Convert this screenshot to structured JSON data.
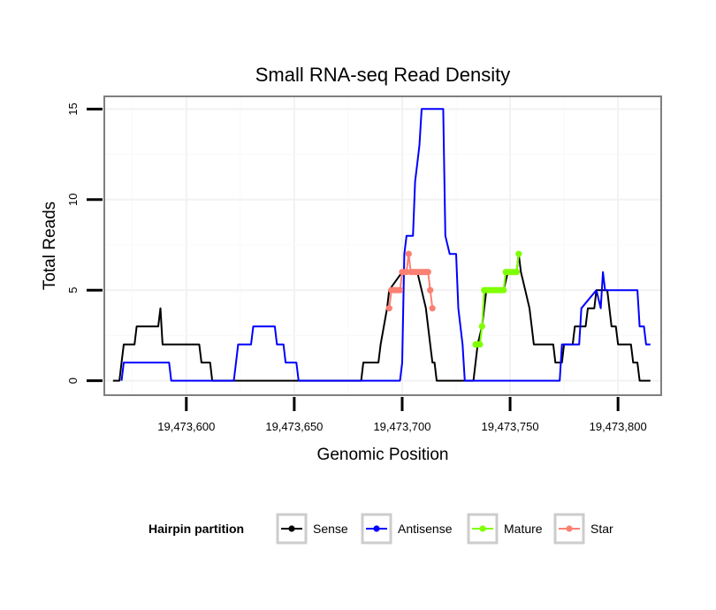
{
  "chart_data": {
    "type": "line",
    "title": "Small RNA-seq Read Density",
    "xlabel": "Genomic Position",
    "ylabel": "Total Reads",
    "xlim": [
      19473562,
      19473820
    ],
    "ylim": [
      -0.8,
      15.7
    ],
    "x_ticks": [
      19473600,
      19473650,
      19473700,
      19473750,
      19473800
    ],
    "x_tick_labels": [
      "19,473,600",
      "19,473,650",
      "19,473,700",
      "19,473,750",
      "19,473,800"
    ],
    "y_ticks": [
      0,
      5,
      10,
      15
    ],
    "y_tick_labels": [
      "0",
      "5",
      "10",
      "15"
    ],
    "grid": true,
    "legend": {
      "title": "Hairpin partition",
      "position": "bottom",
      "entries": [
        {
          "name": "Sense",
          "color": "#000000"
        },
        {
          "name": "Antisense",
          "color": "#0000ff"
        },
        {
          "name": "Mature",
          "color": "#7fff00"
        },
        {
          "name": "Star",
          "color": "#fa8072"
        }
      ]
    },
    "series": [
      {
        "name": "Sense",
        "color": "#000000",
        "markers": false,
        "points": [
          [
            19473566,
            0
          ],
          [
            19473569,
            0
          ],
          [
            19473570,
            1
          ],
          [
            19473571,
            2
          ],
          [
            19473576,
            2
          ],
          [
            19473577,
            3
          ],
          [
            19473587,
            3
          ],
          [
            19473588,
            4
          ],
          [
            19473589,
            2
          ],
          [
            19473600,
            2
          ],
          [
            19473606,
            2
          ],
          [
            19473607,
            1
          ],
          [
            19473611,
            1
          ],
          [
            19473612,
            0
          ],
          [
            19473650,
            0
          ],
          [
            19473664,
            0
          ],
          [
            19473681,
            0
          ],
          [
            19473682,
            1
          ],
          [
            19473689,
            1
          ],
          [
            19473690,
            2
          ],
          [
            19473693,
            4
          ],
          [
            19473694,
            5
          ],
          [
            19473700,
            6
          ],
          [
            19473703,
            6
          ],
          [
            19473707,
            6
          ],
          [
            19473709,
            5
          ],
          [
            19473711,
            4
          ],
          [
            19473713,
            2
          ],
          [
            19473714,
            1
          ],
          [
            19473715,
            1
          ],
          [
            19473716,
            0
          ],
          [
            19473730,
            0
          ],
          [
            19473733,
            0
          ],
          [
            19473735,
            2
          ],
          [
            19473737,
            3
          ],
          [
            19473739,
            5
          ],
          [
            19473747,
            5
          ],
          [
            19473749,
            6
          ],
          [
            19473753,
            6
          ],
          [
            19473754,
            7
          ],
          [
            19473755,
            6
          ],
          [
            19473757,
            5
          ],
          [
            19473759,
            4
          ],
          [
            19473760,
            3
          ],
          [
            19473761,
            2
          ],
          [
            19473770,
            2
          ],
          [
            19473771,
            1
          ],
          [
            19473774,
            1
          ],
          [
            19473775,
            2
          ],
          [
            19473779,
            2
          ],
          [
            19473780,
            3
          ],
          [
            19473785,
            3
          ],
          [
            19473786,
            4
          ],
          [
            19473789,
            4
          ],
          [
            19473790,
            5
          ],
          [
            19473795,
            5
          ],
          [
            19473796,
            4
          ],
          [
            19473797,
            3
          ],
          [
            19473799,
            3
          ],
          [
            19473800,
            2
          ],
          [
            19473806,
            2
          ],
          [
            19473807,
            1
          ],
          [
            19473809,
            1
          ],
          [
            19473810,
            0
          ],
          [
            19473815,
            0
          ]
        ]
      },
      {
        "name": "Antisense",
        "color": "#0000ff",
        "markers": false,
        "points": [
          [
            19473570,
            0
          ],
          [
            19473571,
            1
          ],
          [
            19473592,
            1
          ],
          [
            19473593,
            0
          ],
          [
            19473614,
            0
          ],
          [
            19473622,
            0
          ],
          [
            19473623,
            1
          ],
          [
            19473624,
            2
          ],
          [
            19473630,
            2
          ],
          [
            19473631,
            3
          ],
          [
            19473641,
            3
          ],
          [
            19473642,
            2
          ],
          [
            19473645,
            2
          ],
          [
            19473646,
            1
          ],
          [
            19473651,
            1
          ],
          [
            19473652,
            0
          ],
          [
            19473699,
            0
          ],
          [
            19473700,
            1
          ],
          [
            19473701,
            7
          ],
          [
            19473702,
            8
          ],
          [
            19473705,
            8
          ],
          [
            19473706,
            11
          ],
          [
            19473707,
            12
          ],
          [
            19473708,
            13
          ],
          [
            19473709,
            15
          ],
          [
            19473719,
            15
          ],
          [
            19473720,
            8
          ],
          [
            19473722,
            7
          ],
          [
            19473725,
            7
          ],
          [
            19473726,
            4
          ],
          [
            19473727,
            3
          ],
          [
            19473728,
            2
          ],
          [
            19473729,
            0
          ],
          [
            19473773,
            0
          ],
          [
            19473774,
            2
          ],
          [
            19473782,
            2
          ],
          [
            19473783,
            4
          ],
          [
            19473790,
            5
          ],
          [
            19473792,
            4
          ],
          [
            19473793,
            6
          ],
          [
            19473794,
            5
          ],
          [
            19473809,
            5
          ],
          [
            19473810,
            3
          ],
          [
            19473812,
            3
          ],
          [
            19473813,
            2
          ],
          [
            19473815,
            2
          ]
        ]
      },
      {
        "name": "Mature",
        "color": "#7fff00",
        "markers": true,
        "points": [
          [
            19473734,
            2
          ],
          [
            19473735,
            2
          ],
          [
            19473736,
            2
          ],
          [
            19473737,
            3
          ],
          [
            19473738,
            5
          ],
          [
            19473739,
            5
          ],
          [
            19473740,
            5
          ],
          [
            19473741,
            5
          ],
          [
            19473742,
            5
          ],
          [
            19473743,
            5
          ],
          [
            19473744,
            5
          ],
          [
            19473745,
            5
          ],
          [
            19473746,
            5
          ],
          [
            19473747,
            5
          ],
          [
            19473748,
            6
          ],
          [
            19473749,
            6
          ],
          [
            19473750,
            6
          ],
          [
            19473751,
            6
          ],
          [
            19473752,
            6
          ],
          [
            19473753,
            6
          ],
          [
            19473754,
            7
          ]
        ]
      },
      {
        "name": "Star",
        "color": "#fa8072",
        "markers": true,
        "points": [
          [
            19473694,
            4
          ],
          [
            19473695,
            5
          ],
          [
            19473696,
            5
          ],
          [
            19473697,
            5
          ],
          [
            19473698,
            5
          ],
          [
            19473699,
            5
          ],
          [
            19473700,
            6
          ],
          [
            19473701,
            6
          ],
          [
            19473702,
            6
          ],
          [
            19473703,
            7
          ],
          [
            19473704,
            6
          ],
          [
            19473705,
            6
          ],
          [
            19473706,
            6
          ],
          [
            19473707,
            6
          ],
          [
            19473708,
            6
          ],
          [
            19473709,
            6
          ],
          [
            19473710,
            6
          ],
          [
            19473711,
            6
          ],
          [
            19473712,
            6
          ],
          [
            19473713,
            5
          ],
          [
            19473714,
            4
          ]
        ]
      }
    ]
  }
}
